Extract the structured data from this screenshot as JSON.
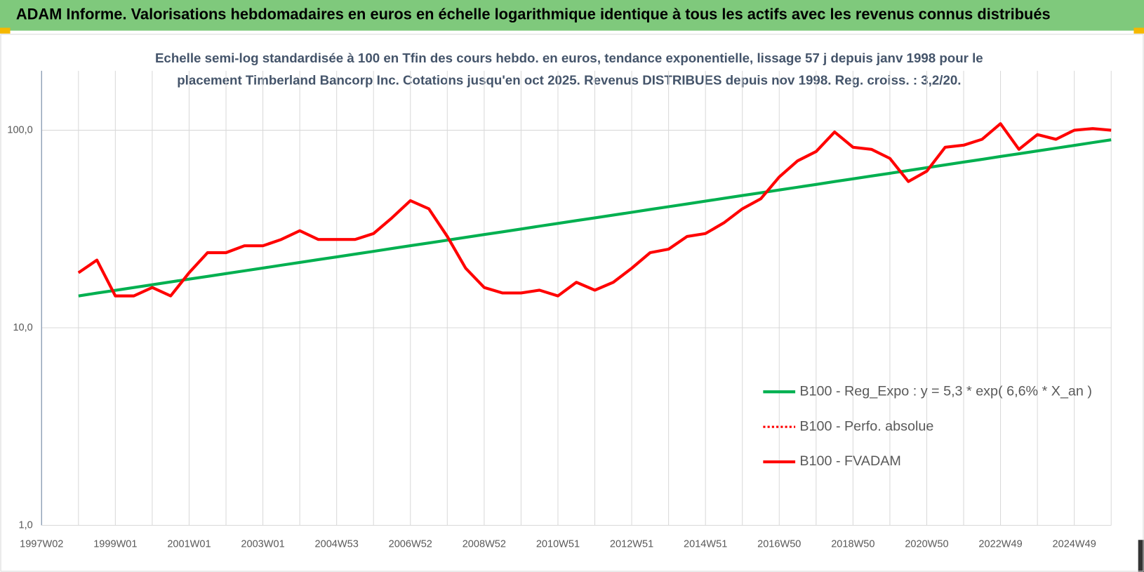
{
  "chart_data": {
    "type": "line",
    "title": "ADAM Informe. Valorisations hebdomadaires en euros en échelle logarithmique identique à tous les actifs avec les revenus connus distribués",
    "subtitle": [
      "Echelle semi-log standardisée à 100 en Tfin des cours hebdo. en euros, tendance exponentielle, lissage 57 j depuis janv 1998 pour le",
      "placement Timberland Bancorp Inc. Cotations jusqu'en oct 2025. Revenus DISTRIBUES depuis nov 1998. Reg. croiss. : 3,2/20."
    ],
    "log_scale": true,
    "grid": true,
    "ylim": [
      1,
      200
    ],
    "yticks": [
      {
        "value": 1,
        "label": "1,0"
      },
      {
        "value": 10,
        "label": "10,0"
      },
      {
        "value": 100,
        "label": "100,0"
      }
    ],
    "categories": [
      "1997W02",
      null,
      null,
      null,
      "1999W01",
      null,
      null,
      null,
      "2001W01",
      null,
      null,
      null,
      "2003W01",
      null,
      null,
      null,
      "2004W53",
      null,
      null,
      null,
      "2006W52",
      null,
      null,
      null,
      "2008W52",
      null,
      null,
      null,
      "2010W51",
      null,
      null,
      null,
      "2012W51",
      null,
      null,
      null,
      "2014W51",
      null,
      null,
      null,
      "2016W50",
      null,
      null,
      null,
      "2018W50",
      null,
      null,
      null,
      "2020W50",
      null,
      null,
      null,
      "2022W49",
      null,
      null,
      null,
      "2024W49",
      null,
      null
    ],
    "series": [
      {
        "name": "B100 - Reg_Expo : y = 5,3 * exp( 6,6% *  X_an )",
        "color": "#00b050",
        "style": "solid",
        "values": [
          null,
          null,
          14.5,
          14.98,
          15.47,
          15.98,
          16.51,
          17.06,
          17.62,
          18.2,
          18.8,
          19.42,
          20.06,
          20.73,
          21.41,
          22.12,
          22.85,
          23.6,
          24.38,
          25.19,
          26.02,
          26.88,
          27.77,
          28.69,
          29.63,
          30.61,
          31.62,
          32.67,
          33.75,
          34.86,
          36.01,
          37.2,
          38.43,
          39.7,
          41.01,
          42.36,
          43.76,
          45.21,
          46.7,
          48.24,
          49.83,
          51.48,
          53.18,
          54.94,
          56.75,
          58.62,
          60.56,
          62.56,
          64.63,
          66.76,
          68.97,
          71.24,
          73.6,
          76.03,
          78.54,
          81.13,
          83.81,
          86.58,
          89.44
        ]
      },
      {
        "name": "B100 - Perfo. absolue",
        "color": "#ff0000",
        "style": "dotted",
        "values": [
          null,
          null,
          19,
          22,
          14.5,
          14.5,
          16,
          14.5,
          19,
          24,
          24,
          26,
          26,
          28,
          31,
          28,
          28,
          28,
          30,
          36,
          44,
          40,
          29,
          20,
          16,
          15,
          15,
          15.5,
          14.5,
          17,
          15.5,
          17,
          20,
          24,
          25,
          29,
          30,
          34,
          40,
          45,
          58,
          70,
          78,
          98,
          82,
          80,
          72,
          55,
          62,
          82,
          84,
          90,
          108,
          80,
          95,
          90,
          100,
          102,
          100
        ]
      },
      {
        "name": "B100 - FVADAM",
        "color": "#ff0000",
        "style": "solid",
        "values": [
          null,
          null,
          19,
          22,
          14.5,
          14.5,
          16,
          14.5,
          19,
          24,
          24,
          26,
          26,
          28,
          31,
          28,
          28,
          28,
          30,
          36,
          44,
          40,
          29,
          20,
          16,
          15,
          15,
          15.5,
          14.5,
          17,
          15.5,
          17,
          20,
          24,
          25,
          29,
          30,
          34,
          40,
          45,
          58,
          70,
          78,
          98,
          82,
          80,
          72,
          55,
          62,
          82,
          84,
          90,
          108,
          80,
          95,
          90,
          100,
          102,
          100
        ]
      }
    ]
  }
}
